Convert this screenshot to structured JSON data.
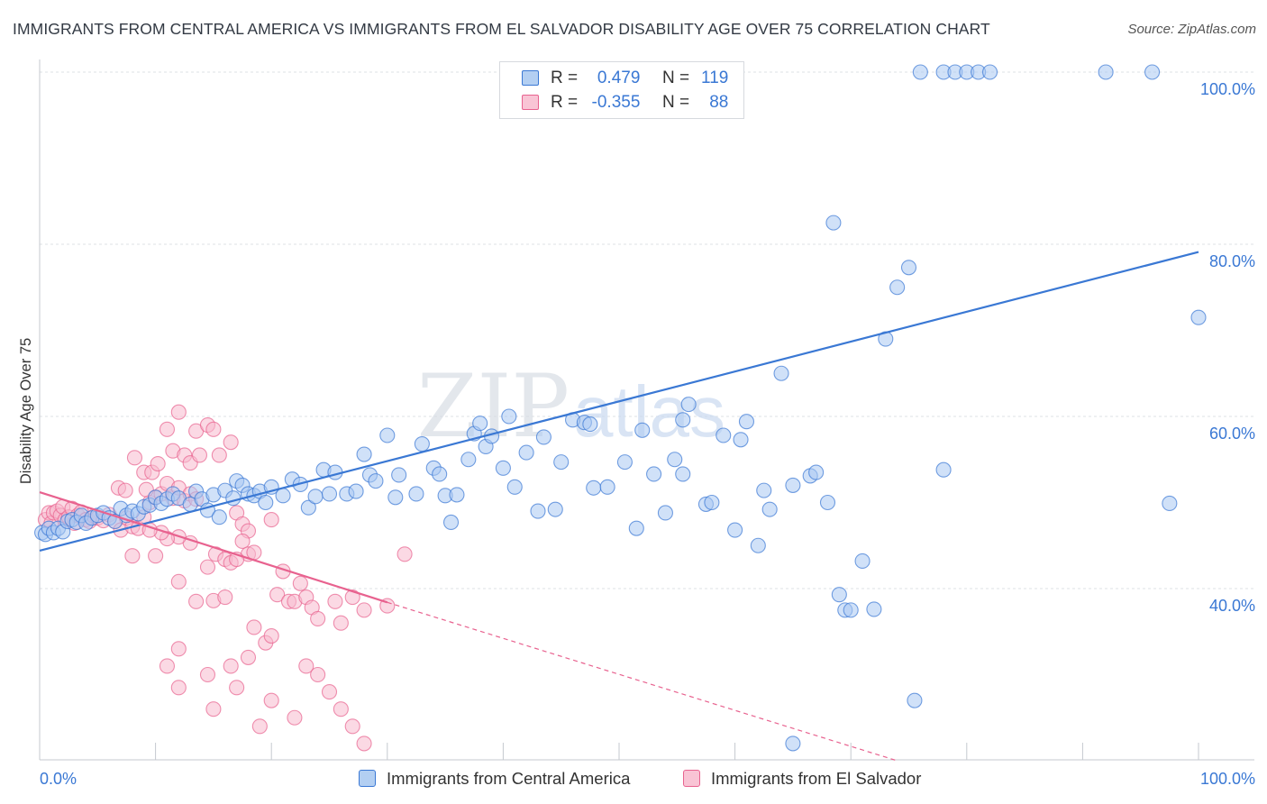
{
  "title": "IMMIGRANTS FROM CENTRAL AMERICA VS IMMIGRANTS FROM EL SALVADOR DISABILITY AGE OVER 75 CORRELATION CHART",
  "source": "Source: ZipAtlas.com",
  "watermark": {
    "zip": "ZIP",
    "atlas": "atlas"
  },
  "legend": {
    "r_label": "R =",
    "n_label": "N =",
    "series": [
      {
        "name": "Immigrants from Central America",
        "r": "0.479",
        "n": "119"
      },
      {
        "name": "Immigrants from El Salvador",
        "r": "-0.355",
        "n": "88"
      }
    ]
  },
  "colors": {
    "blue": "#3a78d4",
    "blue_fill": "#aac9f2",
    "pink": "#e8628f",
    "pink_fill": "#f7b9cd",
    "axis_text": "#3a78d4",
    "grid": "#dde0e4"
  },
  "chart_data": {
    "type": "scatter",
    "title": "IMMIGRANTS FROM CENTRAL AMERICA VS IMMIGRANTS FROM EL SALVADOR DISABILITY AGE OVER 75 CORRELATION CHART",
    "xlabel": "",
    "ylabel": "Disability Age Over 75",
    "xlim": [
      0,
      100
    ],
    "ylim": [
      20,
      104
    ],
    "x_tick_labels": [
      "0.0%",
      "100.0%"
    ],
    "y_ticks": [
      {
        "value": 40,
        "label": "40.0%"
      },
      {
        "value": 60,
        "label": "60.0%"
      },
      {
        "value": 80,
        "label": "80.0%"
      },
      {
        "value": 100,
        "label": "100.0%"
      }
    ],
    "series": [
      {
        "name": "Immigrants from Central America",
        "color": "#3a78d4",
        "trend": {
          "x": [
            0,
            100
          ],
          "y": [
            44.4,
            79.1
          ],
          "dashed_after": null
        },
        "points": [
          [
            0.2,
            46.5
          ],
          [
            0.5,
            46.3
          ],
          [
            0.8,
            47
          ],
          [
            1.2,
            46.5
          ],
          [
            1.6,
            47
          ],
          [
            2,
            46.6
          ],
          [
            2.4,
            47.8
          ],
          [
            2.8,
            48
          ],
          [
            3.2,
            47.7
          ],
          [
            3.6,
            48.5
          ],
          [
            4,
            47.6
          ],
          [
            4.5,
            48.2
          ],
          [
            5,
            48.5
          ],
          [
            5.5,
            48.8
          ],
          [
            6,
            48.2
          ],
          [
            6.5,
            47.8
          ],
          [
            7,
            49.3
          ],
          [
            7.5,
            48.5
          ],
          [
            8,
            49
          ],
          [
            8.5,
            48.7
          ],
          [
            9,
            49.5
          ],
          [
            9.5,
            49.7
          ],
          [
            10,
            50.6
          ],
          [
            10.5,
            49.9
          ],
          [
            11,
            50.4
          ],
          [
            11.5,
            51
          ],
          [
            12,
            50.5
          ],
          [
            13,
            49.8
          ],
          [
            13.5,
            51.3
          ],
          [
            14,
            50.4
          ],
          [
            14.5,
            49.1
          ],
          [
            15,
            50.9
          ],
          [
            15.5,
            48.3
          ],
          [
            16,
            51.4
          ],
          [
            16.7,
            50.5
          ],
          [
            17,
            52.5
          ],
          [
            17.5,
            52
          ],
          [
            18,
            51
          ],
          [
            18.5,
            50.8
          ],
          [
            19,
            51.3
          ],
          [
            19.5,
            50
          ],
          [
            20,
            51.8
          ],
          [
            21,
            50.8
          ],
          [
            21.8,
            52.7
          ],
          [
            22.5,
            52.1
          ],
          [
            23.2,
            49.4
          ],
          [
            23.8,
            50.7
          ],
          [
            24.5,
            53.8
          ],
          [
            25,
            51
          ],
          [
            25.5,
            53.5
          ],
          [
            26.5,
            51
          ],
          [
            27.3,
            51.3
          ],
          [
            28,
            55.6
          ],
          [
            28.5,
            53.2
          ],
          [
            29,
            52.5
          ],
          [
            30,
            57.8
          ],
          [
            30.7,
            50.6
          ],
          [
            31,
            53.2
          ],
          [
            32.5,
            51
          ],
          [
            33,
            56.8
          ],
          [
            34,
            54
          ],
          [
            34.5,
            53.3
          ],
          [
            35,
            50.8
          ],
          [
            35.5,
            47.7
          ],
          [
            36,
            50.9
          ],
          [
            37,
            55
          ],
          [
            37.5,
            58
          ],
          [
            38,
            59.2
          ],
          [
            38.5,
            56.5
          ],
          [
            39,
            57.7
          ],
          [
            40,
            54
          ],
          [
            40.5,
            60
          ],
          [
            41,
            51.8
          ],
          [
            42,
            55.8
          ],
          [
            43,
            49
          ],
          [
            43.5,
            57.6
          ],
          [
            44.5,
            49.2
          ],
          [
            45,
            54.7
          ],
          [
            46,
            59.6
          ],
          [
            47,
            59.3
          ],
          [
            47.5,
            59.1
          ],
          [
            47.8,
            51.7
          ],
          [
            49,
            51.8
          ],
          [
            50.5,
            54.7
          ],
          [
            51.5,
            47
          ],
          [
            52,
            58.4
          ],
          [
            53,
            53.3
          ],
          [
            54,
            48.8
          ],
          [
            55.5,
            59.6
          ],
          [
            55.5,
            53.3
          ],
          [
            54.8,
            55
          ],
          [
            56,
            61.4
          ],
          [
            57.5,
            49.8
          ],
          [
            58,
            50
          ],
          [
            59,
            57.8
          ],
          [
            60,
            46.8
          ],
          [
            60.5,
            57.3
          ],
          [
            61,
            59.4
          ],
          [
            62,
            45
          ],
          [
            62.5,
            51.4
          ],
          [
            63,
            49.2
          ],
          [
            64,
            65
          ],
          [
            65,
            52
          ],
          [
            66.5,
            53.1
          ],
          [
            67,
            53.5
          ],
          [
            68,
            50
          ],
          [
            68.5,
            82.5
          ],
          [
            69,
            39.3
          ],
          [
            69.5,
            37.5
          ],
          [
            70,
            37.5
          ],
          [
            71,
            43.2
          ],
          [
            72,
            37.6
          ],
          [
            73,
            69
          ],
          [
            74,
            75
          ],
          [
            75.5,
            27
          ],
          [
            75,
            77.3
          ],
          [
            76,
            100
          ],
          [
            78,
            53.8
          ],
          [
            78,
            100
          ],
          [
            79,
            100
          ],
          [
            80,
            100
          ],
          [
            81,
            100
          ],
          [
            82,
            100
          ],
          [
            92,
            100
          ],
          [
            96,
            100
          ],
          [
            97.5,
            49.9
          ],
          [
            100,
            71.5
          ],
          [
            65,
            22
          ]
        ]
      },
      {
        "name": "Immigrants from El Salvador",
        "color": "#e8628f",
        "trend": {
          "x": [
            0,
            30
          ],
          "y": [
            51.2,
            38.4
          ],
          "dashed_to": [
            74,
            20
          ]
        },
        "points": [
          [
            0.5,
            48
          ],
          [
            0.8,
            48.8
          ],
          [
            1,
            47.6
          ],
          [
            1.2,
            48.8
          ],
          [
            1.5,
            49
          ],
          [
            1.8,
            48.5
          ],
          [
            2,
            49.5
          ],
          [
            2.2,
            48
          ],
          [
            2.5,
            48.3
          ],
          [
            2.8,
            49.3
          ],
          [
            3,
            47.6
          ],
          [
            3.3,
            48.5
          ],
          [
            3.6,
            48.9
          ],
          [
            4,
            48
          ],
          [
            4.3,
            47.8
          ],
          [
            4.7,
            48.4
          ],
          [
            5,
            48.2
          ],
          [
            5.5,
            47.9
          ],
          [
            6,
            48.6
          ],
          [
            6.5,
            47.8
          ],
          [
            7,
            46.8
          ],
          [
            7.5,
            48.2
          ],
          [
            8,
            47.2
          ],
          [
            8.5,
            47
          ],
          [
            9,
            48.3
          ],
          [
            9.5,
            50
          ],
          [
            10,
            50.6
          ],
          [
            10.5,
            51
          ],
          [
            11,
            52.2
          ],
          [
            11.5,
            50.5
          ],
          [
            12,
            51.7
          ],
          [
            12.5,
            50.2
          ],
          [
            13,
            51
          ],
          [
            13.5,
            50.4
          ],
          [
            6.8,
            51.7
          ],
          [
            7.4,
            51.4
          ],
          [
            9.2,
            51.5
          ],
          [
            9,
            53.5
          ],
          [
            9.7,
            53.5
          ],
          [
            10.2,
            54.5
          ],
          [
            8.2,
            55.2
          ],
          [
            11.5,
            56
          ],
          [
            12.5,
            55.5
          ],
          [
            13,
            54.6
          ],
          [
            13.8,
            55.5
          ],
          [
            11,
            58.5
          ],
          [
            12,
            60.5
          ],
          [
            13.5,
            58.3
          ],
          [
            14.5,
            59
          ],
          [
            15,
            58.5
          ],
          [
            16.5,
            57
          ],
          [
            15.5,
            55.5
          ],
          [
            17,
            48.8
          ],
          [
            17.5,
            47.5
          ],
          [
            18,
            46.7
          ],
          [
            15.2,
            44
          ],
          [
            16,
            43.4
          ],
          [
            16.5,
            43
          ],
          [
            14.5,
            42.5
          ],
          [
            13,
            45.3
          ],
          [
            12,
            46
          ],
          [
            11,
            45.8
          ],
          [
            10.5,
            46.5
          ],
          [
            9.5,
            46.8
          ],
          [
            8,
            43.8
          ],
          [
            10,
            43.8
          ],
          [
            12,
            40.8
          ],
          [
            13.5,
            38.5
          ],
          [
            15,
            38.6
          ],
          [
            16,
            39
          ],
          [
            17.5,
            45.5
          ],
          [
            18,
            44
          ],
          [
            17,
            43.4
          ],
          [
            18.5,
            44.2
          ],
          [
            20,
            48
          ],
          [
            21,
            42
          ],
          [
            20.5,
            39.3
          ],
          [
            21.5,
            38.5
          ],
          [
            22,
            38.5
          ],
          [
            22.5,
            40.6
          ],
          [
            23,
            39
          ],
          [
            23.5,
            37.8
          ],
          [
            24,
            36.5
          ],
          [
            25.5,
            38.5
          ],
          [
            26,
            36
          ],
          [
            27,
            39
          ],
          [
            28,
            37.5
          ],
          [
            30,
            38
          ],
          [
            31.5,
            44
          ],
          [
            23,
            31
          ],
          [
            24,
            30
          ],
          [
            25,
            28
          ],
          [
            26,
            26
          ],
          [
            27,
            24
          ],
          [
            28,
            22
          ],
          [
            18.5,
            35.5
          ],
          [
            19.5,
            33.7
          ],
          [
            20,
            34.5
          ],
          [
            18,
            32
          ],
          [
            16.5,
            31
          ],
          [
            14.5,
            30
          ],
          [
            12,
            33
          ],
          [
            11,
            31
          ],
          [
            17,
            28.5
          ],
          [
            20,
            27
          ],
          [
            22,
            25
          ],
          [
            19,
            24
          ],
          [
            15,
            26
          ],
          [
            12,
            28.5
          ]
        ]
      }
    ]
  }
}
